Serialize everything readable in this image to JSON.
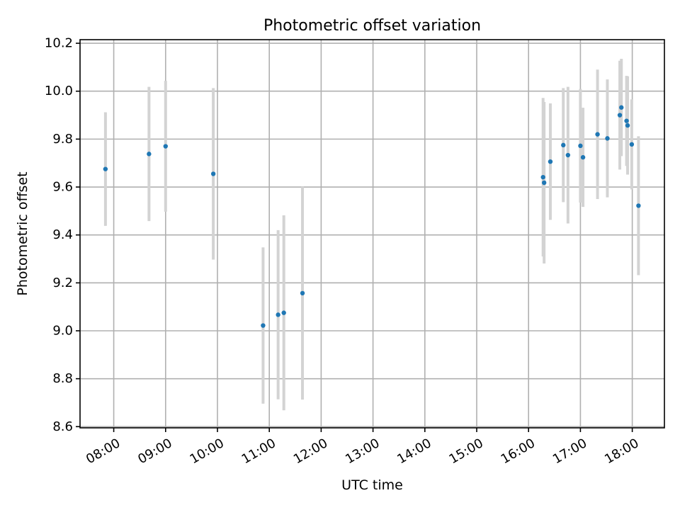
{
  "chart_data": {
    "type": "scatter",
    "title": "Photometric offset variation",
    "xlabel": "UTC time",
    "ylabel": "Photometric offset",
    "x_unit": "hours (UTC)",
    "xlim": [
      7.35,
      18.62
    ],
    "ylim": [
      8.595,
      10.215
    ],
    "grid": true,
    "x_ticks": [
      {
        "value": 8,
        "label": "08:00"
      },
      {
        "value": 9,
        "label": "09:00"
      },
      {
        "value": 10,
        "label": "10:00"
      },
      {
        "value": 11,
        "label": "11:00"
      },
      {
        "value": 12,
        "label": "12:00"
      },
      {
        "value": 13,
        "label": "13:00"
      },
      {
        "value": 14,
        "label": "14:00"
      },
      {
        "value": 15,
        "label": "15:00"
      },
      {
        "value": 16,
        "label": "16:00"
      },
      {
        "value": 17,
        "label": "17:00"
      },
      {
        "value": 18,
        "label": "18:00"
      }
    ],
    "y_ticks": [
      {
        "value": 8.6,
        "label": "8.6"
      },
      {
        "value": 8.8,
        "label": "8.8"
      },
      {
        "value": 9.0,
        "label": "9.0"
      },
      {
        "value": 9.2,
        "label": "9.2"
      },
      {
        "value": 9.4,
        "label": "9.4"
      },
      {
        "value": 9.6,
        "label": "9.6"
      },
      {
        "value": 9.8,
        "label": "9.8"
      },
      {
        "value": 10.0,
        "label": "10.0"
      },
      {
        "value": 10.2,
        "label": "10.2"
      }
    ],
    "marker_color": "#1f77b4",
    "errorbar_color": "#d3d3d3",
    "points": [
      {
        "x": 7.84,
        "y": 9.675,
        "err": 0.237
      },
      {
        "x": 8.68,
        "y": 9.738,
        "err": 0.28
      },
      {
        "x": 9.0,
        "y": 9.77,
        "err": 0.273
      },
      {
        "x": 9.92,
        "y": 9.655,
        "err": 0.358
      },
      {
        "x": 10.88,
        "y": 9.022,
        "err": 0.326
      },
      {
        "x": 11.17,
        "y": 9.067,
        "err": 0.353
      },
      {
        "x": 11.28,
        "y": 9.075,
        "err": 0.407
      },
      {
        "x": 11.64,
        "y": 9.157,
        "err": 0.444
      },
      {
        "x": 16.28,
        "y": 9.641,
        "err": 0.331
      },
      {
        "x": 16.3,
        "y": 9.618,
        "err": 0.337
      },
      {
        "x": 16.42,
        "y": 9.706,
        "err": 0.243
      },
      {
        "x": 16.67,
        "y": 9.775,
        "err": 0.238
      },
      {
        "x": 16.76,
        "y": 9.733,
        "err": 0.285
      },
      {
        "x": 17.0,
        "y": 9.772,
        "err": 0.237
      },
      {
        "x": 17.05,
        "y": 9.724,
        "err": 0.207
      },
      {
        "x": 17.33,
        "y": 9.82,
        "err": 0.27
      },
      {
        "x": 17.52,
        "y": 9.803,
        "err": 0.246
      },
      {
        "x": 17.76,
        "y": 9.9,
        "err": 0.227
      },
      {
        "x": 17.79,
        "y": 9.932,
        "err": 0.203
      },
      {
        "x": 17.89,
        "y": 9.876,
        "err": 0.188
      },
      {
        "x": 17.91,
        "y": 9.857,
        "err": 0.205
      },
      {
        "x": 17.99,
        "y": 9.778,
        "err": 0.188
      },
      {
        "x": 18.12,
        "y": 9.522,
        "err": 0.29
      }
    ]
  }
}
